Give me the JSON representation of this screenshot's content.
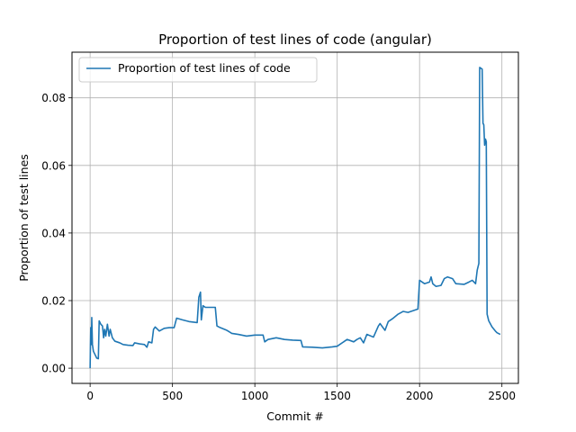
{
  "chart_data": {
    "type": "line",
    "title": "Proportion of test lines of code (angular)",
    "xlabel": "Commit #",
    "ylabel": "Proportion of test lines",
    "xlim": [
      -110,
      2600
    ],
    "ylim": [
      -0.0045,
      0.0935
    ],
    "x_ticks": [
      0,
      500,
      1000,
      1500,
      2000,
      2500
    ],
    "y_ticks": [
      0.0,
      0.02,
      0.04,
      0.06,
      0.08
    ],
    "x_tick_labels": [
      "0",
      "500",
      "1000",
      "1500",
      "2000",
      "2500"
    ],
    "y_tick_labels": [
      "0.00",
      "0.02",
      "0.04",
      "0.06",
      "0.08"
    ],
    "grid": true,
    "legend_position": "top-left",
    "colors": {
      "series": "#1f77b4"
    },
    "series": [
      {
        "name": "Proportion of test lines of code",
        "points": [
          [
            0,
            0.0
          ],
          [
            2,
            0.007
          ],
          [
            4,
            0.012
          ],
          [
            6,
            0.009
          ],
          [
            8,
            0.007
          ],
          [
            10,
            0.015
          ],
          [
            14,
            0.007
          ],
          [
            20,
            0.005
          ],
          [
            30,
            0.004
          ],
          [
            40,
            0.003
          ],
          [
            50,
            0.0028
          ],
          [
            55,
            0.014
          ],
          [
            65,
            0.013
          ],
          [
            75,
            0.0125
          ],
          [
            82,
            0.009
          ],
          [
            88,
            0.0115
          ],
          [
            95,
            0.0095
          ],
          [
            105,
            0.013
          ],
          [
            115,
            0.0095
          ],
          [
            122,
            0.0115
          ],
          [
            135,
            0.009
          ],
          [
            150,
            0.008
          ],
          [
            180,
            0.0075
          ],
          [
            200,
            0.007
          ],
          [
            230,
            0.0068
          ],
          [
            260,
            0.0067
          ],
          [
            270,
            0.0075
          ],
          [
            300,
            0.0072
          ],
          [
            330,
            0.007
          ],
          [
            345,
            0.0062
          ],
          [
            355,
            0.0078
          ],
          [
            375,
            0.0075
          ],
          [
            385,
            0.0115
          ],
          [
            395,
            0.0122
          ],
          [
            420,
            0.011
          ],
          [
            450,
            0.0118
          ],
          [
            480,
            0.012
          ],
          [
            510,
            0.012
          ],
          [
            525,
            0.0148
          ],
          [
            560,
            0.0143
          ],
          [
            600,
            0.0138
          ],
          [
            650,
            0.0135
          ],
          [
            660,
            0.021
          ],
          [
            670,
            0.0225
          ],
          [
            675,
            0.0143
          ],
          [
            685,
            0.0185
          ],
          [
            700,
            0.018
          ],
          [
            760,
            0.018
          ],
          [
            770,
            0.0125
          ],
          [
            790,
            0.012
          ],
          [
            830,
            0.0112
          ],
          [
            860,
            0.0103
          ],
          [
            900,
            0.01
          ],
          [
            950,
            0.0095
          ],
          [
            1000,
            0.0098
          ],
          [
            1050,
            0.0098
          ],
          [
            1060,
            0.0078
          ],
          [
            1080,
            0.0085
          ],
          [
            1130,
            0.009
          ],
          [
            1180,
            0.0085
          ],
          [
            1230,
            0.0083
          ],
          [
            1280,
            0.0082
          ],
          [
            1290,
            0.0063
          ],
          [
            1350,
            0.0062
          ],
          [
            1410,
            0.006
          ],
          [
            1470,
            0.0063
          ],
          [
            1500,
            0.0065
          ],
          [
            1560,
            0.0085
          ],
          [
            1600,
            0.0078
          ],
          [
            1620,
            0.0085
          ],
          [
            1640,
            0.009
          ],
          [
            1660,
            0.0075
          ],
          [
            1680,
            0.01
          ],
          [
            1720,
            0.0092
          ],
          [
            1750,
            0.0125
          ],
          [
            1760,
            0.0132
          ],
          [
            1790,
            0.0112
          ],
          [
            1810,
            0.0138
          ],
          [
            1840,
            0.0148
          ],
          [
            1870,
            0.016
          ],
          [
            1900,
            0.0168
          ],
          [
            1930,
            0.0165
          ],
          [
            1960,
            0.017
          ],
          [
            1990,
            0.0175
          ],
          [
            2000,
            0.026
          ],
          [
            2030,
            0.025
          ],
          [
            2060,
            0.0255
          ],
          [
            2070,
            0.027
          ],
          [
            2080,
            0.025
          ],
          [
            2100,
            0.0242
          ],
          [
            2130,
            0.0245
          ],
          [
            2150,
            0.0265
          ],
          [
            2170,
            0.027
          ],
          [
            2200,
            0.0265
          ],
          [
            2220,
            0.025
          ],
          [
            2270,
            0.0248
          ],
          [
            2300,
            0.0255
          ],
          [
            2320,
            0.026
          ],
          [
            2340,
            0.025
          ],
          [
            2350,
            0.029
          ],
          [
            2360,
            0.031
          ],
          [
            2365,
            0.089
          ],
          [
            2380,
            0.0885
          ],
          [
            2385,
            0.0725
          ],
          [
            2390,
            0.072
          ],
          [
            2395,
            0.066
          ],
          [
            2400,
            0.0678
          ],
          [
            2405,
            0.067
          ],
          [
            2410,
            0.016
          ],
          [
            2420,
            0.014
          ],
          [
            2440,
            0.0122
          ],
          [
            2460,
            0.011
          ],
          [
            2470,
            0.0105
          ],
          [
            2490,
            0.01
          ]
        ]
      }
    ]
  }
}
